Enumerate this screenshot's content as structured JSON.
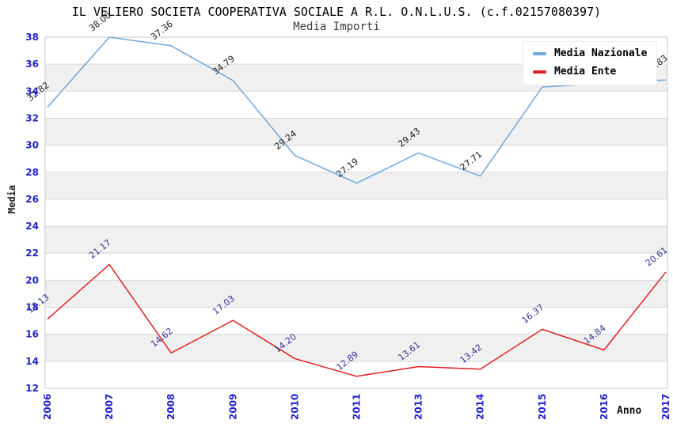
{
  "chart_data": {
    "type": "line",
    "title": "IL VELIERO SOCIETA COOPERATIVA SOCIALE A R.L. O.N.L.U.S. (c.f.02157080397)",
    "subtitle": "Media Importi",
    "xlabel": "Anno",
    "ylabel": "Media",
    "categories": [
      "2006",
      "2007",
      "2008",
      "2009",
      "2010",
      "2011",
      "2013",
      "2014",
      "2015",
      "2016",
      "2017"
    ],
    "series": [
      {
        "name": "Media Nazionale",
        "color": "#6fa8dc",
        "label_color": "#1a1a1a",
        "values": [
          32.82,
          38.0,
          37.36,
          34.79,
          29.24,
          27.19,
          29.43,
          27.71,
          34.3,
          34.6,
          34.83
        ],
        "labels": [
          "32.82",
          "38.00",
          "37.36",
          "34.79",
          "29.24",
          "27.19",
          "29.43",
          "27.71",
          "",
          "",
          "34.83"
        ]
      },
      {
        "name": "Media Ente",
        "color": "#e02020",
        "label_color": "#333399",
        "values": [
          17.13,
          21.17,
          14.62,
          17.03,
          14.2,
          12.89,
          13.61,
          13.42,
          16.37,
          14.84,
          20.61
        ],
        "labels": [
          "17.13",
          "21.17",
          "14.62",
          "17.03",
          "14.20",
          "12.89",
          "13.61",
          "13.42",
          "16.37",
          "14.84",
          "20.61"
        ]
      }
    ],
    "ylim": [
      12,
      38
    ],
    "ytick_step": 2,
    "yticks": [
      38,
      36,
      34,
      32,
      30,
      28,
      26,
      24,
      22,
      20,
      18,
      16,
      14,
      12
    ],
    "grid": true,
    "band_fill": "#f0f0f0",
    "gridline_color": "#d8d8d8",
    "plot_border_color": "#c9c9c9",
    "axis_tick_color": "#2222cc",
    "legend_position": "top-right",
    "notes": "Year 2012 absent from x axis; blue-series labels for 2015 and 2016 hidden behind legend (values estimated from line position)"
  }
}
